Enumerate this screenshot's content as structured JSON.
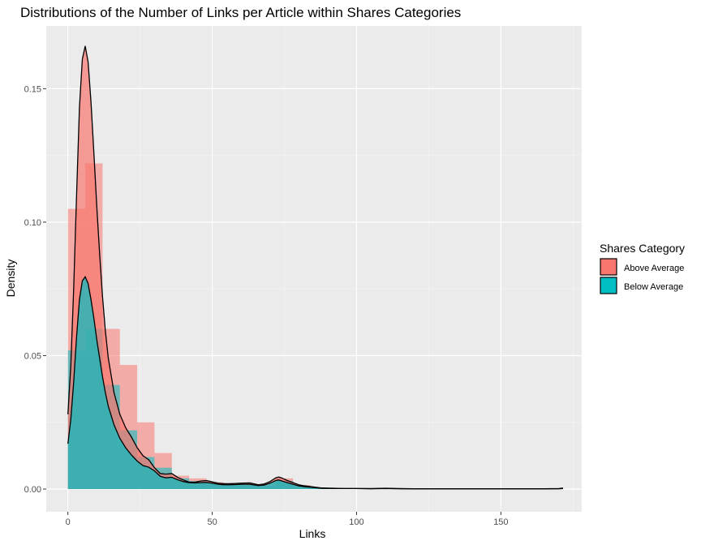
{
  "chart_data": {
    "type": "area",
    "title": "Distributions of the Number of Links per Article within Shares Categories",
    "xlabel": "Links",
    "ylabel": "Density",
    "xlim": [
      -7.5,
      178
    ],
    "ylim": [
      -0.0085,
      0.1735
    ],
    "x_ticks": [
      0,
      50,
      100,
      150
    ],
    "x_tick_labels": [
      "0",
      "50",
      "100",
      "150"
    ],
    "y_ticks": [
      0,
      0.05,
      0.1,
      0.15
    ],
    "y_tick_labels": [
      "0.00",
      "0.05",
      "0.10",
      "0.15"
    ],
    "grid": true,
    "legend": {
      "title": "Shares Category",
      "position": "right",
      "entries": [
        {
          "label": "Above Average",
          "color": "#F8766D"
        },
        {
          "label": "Below Average",
          "color": "#00BFC4"
        }
      ]
    },
    "histogram": {
      "bin_width": 6,
      "bin_starts": [
        0,
        6,
        12,
        18,
        24,
        30,
        36,
        42,
        48,
        54,
        60,
        66,
        72,
        78,
        84
      ],
      "series": [
        {
          "name": "Above Average",
          "color": "#F8766D",
          "values": [
            0.105,
            0.122,
            0.06,
            0.0465,
            0.025,
            0.0135,
            0.005,
            0.004,
            0.0025,
            0.0015,
            0.0015,
            0.0012,
            0.004,
            0.0015,
            0.0005
          ]
        },
        {
          "name": "Below Average",
          "color": "#00BFC4",
          "values": [
            0.052,
            0.06,
            0.039,
            0.022,
            0.012,
            0.008,
            0.004,
            0.003,
            0.002,
            0.0015,
            0.0012,
            0.001,
            0.003,
            0.001,
            0.0005
          ]
        }
      ]
    },
    "density": {
      "series": [
        {
          "name": "Above Average",
          "color": "#F8766D",
          "x": [
            0,
            1,
            2,
            3,
            4,
            5,
            6,
            7,
            8,
            9,
            10,
            11,
            12,
            13,
            14,
            16,
            18,
            20,
            22,
            24,
            26,
            28,
            30,
            32,
            34,
            36,
            38,
            40,
            42,
            44,
            46,
            48,
            50,
            52,
            54,
            56,
            58,
            60,
            63,
            66,
            68,
            70,
            72,
            73,
            74,
            76,
            78,
            80,
            82,
            85,
            88,
            92,
            96,
            100,
            105,
            110,
            115,
            120,
            130,
            140,
            150,
            160,
            165,
            170,
            171.5
          ],
          "y": [
            0.028,
            0.046,
            0.075,
            0.11,
            0.143,
            0.161,
            0.166,
            0.16,
            0.145,
            0.126,
            0.106,
            0.088,
            0.072,
            0.059,
            0.049,
            0.036,
            0.028,
            0.023,
            0.0195,
            0.0155,
            0.0125,
            0.011,
            0.008,
            0.0058,
            0.0056,
            0.0058,
            0.0044,
            0.0034,
            0.0026,
            0.0026,
            0.003,
            0.0032,
            0.0027,
            0.0022,
            0.002,
            0.002,
            0.0021,
            0.0022,
            0.0023,
            0.0016,
            0.0019,
            0.0028,
            0.0042,
            0.0045,
            0.0042,
            0.0032,
            0.0024,
            0.0016,
            0.0012,
            0.0008,
            0.0004,
            0.0003,
            0.0002,
            0.0002,
            0.0002,
            0.0003,
            0.0002,
            0.0001,
            0.0001,
            0.0001,
            0.0001,
            0.0001,
            0.0001,
            0.0002,
            0.0004
          ]
        },
        {
          "name": "Below Average",
          "color": "#00BFC4",
          "x": [
            0,
            1,
            2,
            3,
            4,
            5,
            6,
            7,
            8,
            9,
            10,
            11,
            12,
            13,
            14,
            16,
            18,
            20,
            22,
            24,
            26,
            28,
            30,
            32,
            34,
            36,
            38,
            40,
            42,
            44,
            46,
            48,
            50,
            52,
            54,
            56,
            58,
            60,
            63,
            66,
            68,
            70,
            72,
            73,
            74,
            76,
            78,
            80,
            82,
            85,
            88,
            92,
            96,
            100,
            105,
            110,
            115,
            120,
            130,
            140,
            150,
            160,
            165,
            170,
            171.5
          ],
          "y": [
            0.017,
            0.026,
            0.04,
            0.057,
            0.071,
            0.078,
            0.0795,
            0.077,
            0.071,
            0.064,
            0.056,
            0.049,
            0.042,
            0.036,
            0.031,
            0.024,
            0.019,
            0.0155,
            0.0128,
            0.0105,
            0.0088,
            0.0082,
            0.0068,
            0.0048,
            0.0042,
            0.0044,
            0.0035,
            0.0028,
            0.0024,
            0.0023,
            0.0024,
            0.0025,
            0.0022,
            0.0018,
            0.0016,
            0.0016,
            0.0017,
            0.0018,
            0.0018,
            0.0013,
            0.0015,
            0.0022,
            0.0032,
            0.0034,
            0.0031,
            0.0024,
            0.0018,
            0.0012,
            0.0009,
            0.0006,
            0.0003,
            0.0002,
            0.0002,
            0.0002,
            0.0001,
            0.0002,
            0.0001,
            0.0001,
            0.0001,
            0.0001,
            0.0001,
            0.0001,
            0.0001,
            0.0001,
            0.0002
          ]
        }
      ]
    }
  }
}
